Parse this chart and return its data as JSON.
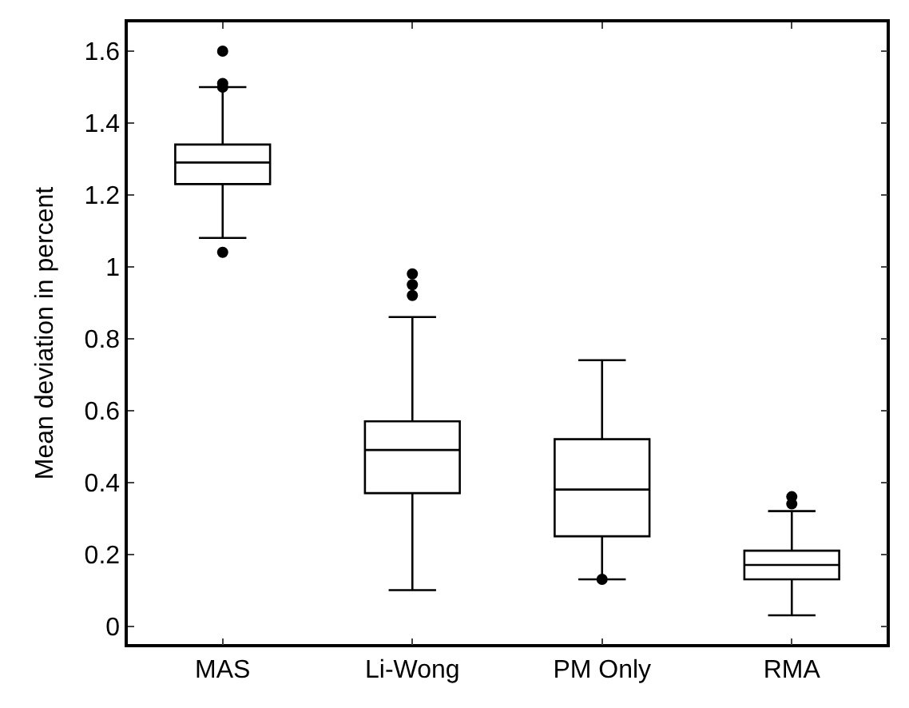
{
  "chart_data": {
    "type": "box",
    "ylabel": "Mean deviation in percent",
    "categories": [
      "MAS",
      "Li-Wong",
      "PM Only",
      "RMA"
    ],
    "boxes": [
      {
        "low": 1.08,
        "q1": 1.23,
        "median": 1.29,
        "q3": 1.34,
        "high": 1.5,
        "outliers": [
          1.6,
          1.51,
          1.5,
          1.04
        ]
      },
      {
        "low": 0.1,
        "q1": 0.37,
        "median": 0.49,
        "q3": 0.57,
        "high": 0.86,
        "outliers": [
          0.98,
          0.95,
          0.92
        ]
      },
      {
        "low": 0.13,
        "q1": 0.25,
        "median": 0.38,
        "q3": 0.52,
        "high": 0.74,
        "outliers": [
          0.13
        ]
      },
      {
        "low": 0.03,
        "q1": 0.13,
        "median": 0.17,
        "q3": 0.21,
        "high": 0.32,
        "outliers": [
          0.36,
          0.34
        ]
      }
    ],
    "color": "#000000",
    "ylim": [
      -0.05,
      1.68
    ],
    "yticks": [
      0,
      0.2,
      0.4,
      0.6,
      0.8,
      1,
      1.2,
      1.4,
      1.6
    ]
  }
}
